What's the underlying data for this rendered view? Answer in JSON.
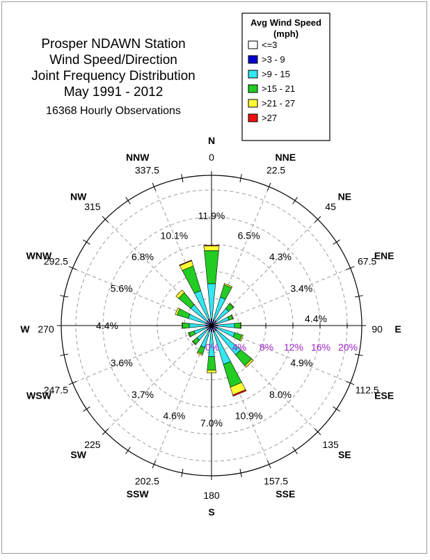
{
  "chart_data": {
    "type": "wind_rose",
    "title_lines": [
      "Prosper NDAWN Station",
      "Wind Speed/Direction",
      "Joint Frequency Distribution",
      "May 1991 - 2012"
    ],
    "subtitle": "16368 Hourly Observations",
    "legend": {
      "title_line1": "Avg Wind Speed",
      "title_line2": "(mph)",
      "placement": "top-right"
    },
    "speed_bins": [
      {
        "label": "<=3",
        "color": "#ffffff"
      },
      {
        "label": ">3 - 9",
        "color": "#0000cc"
      },
      {
        "label": ">9 - 15",
        "color": "#33e6f0"
      },
      {
        "label": ">15 - 21",
        "color": "#22cc22"
      },
      {
        "label": ">21 - 27",
        "color": "#ffff33"
      },
      {
        "label": ">27",
        "color": "#ee1111"
      }
    ],
    "ring_percent_labels": [
      "0%",
      "4%",
      "8%",
      "12%",
      "16%",
      "20%"
    ],
    "ring_percent_max": 20,
    "directions": [
      {
        "deg": 0,
        "deg_label": "0",
        "compass": "N",
        "total_label": "11.9%",
        "segments": [
          0.3,
          0.7,
          5.2,
          4.9,
          0.7,
          0.1
        ]
      },
      {
        "deg": 22.5,
        "deg_label": "22.5",
        "compass": "NNE",
        "total_label": "6.5%",
        "segments": [
          0.3,
          0.6,
          3.5,
          1.9,
          0.2,
          0.0
        ]
      },
      {
        "deg": 45,
        "deg_label": "45",
        "compass": "NE",
        "total_label": "4.3%",
        "segments": [
          0.3,
          0.6,
          2.4,
          0.9,
          0.1,
          0.0
        ]
      },
      {
        "deg": 67.5,
        "deg_label": "67.5",
        "compass": "ENE",
        "total_label": "3.4%",
        "segments": [
          0.3,
          0.5,
          1.9,
          0.6,
          0.1,
          0.0
        ]
      },
      {
        "deg": 90,
        "deg_label": "90",
        "compass": "E",
        "total_label": "4.4%",
        "segments": [
          0.3,
          0.6,
          2.5,
          0.9,
          0.1,
          0.0
        ]
      },
      {
        "deg": 112.5,
        "deg_label": "112.5",
        "compass": "ESE",
        "total_label": "4.9%",
        "segments": [
          0.3,
          0.6,
          2.7,
          1.1,
          0.2,
          0.0
        ]
      },
      {
        "deg": 135,
        "deg_label": "135",
        "compass": "SE",
        "total_label": "8.0%",
        "segments": [
          0.3,
          0.7,
          4.6,
          2.1,
          0.3,
          0.0
        ]
      },
      {
        "deg": 157.5,
        "deg_label": "157.5",
        "compass": "SSE",
        "total_label": "10.9%",
        "segments": [
          0.3,
          0.7,
          5.0,
          3.5,
          1.2,
          0.2
        ]
      },
      {
        "deg": 180,
        "deg_label": "180",
        "compass": "S",
        "total_label": "7.0%",
        "segments": [
          0.3,
          0.6,
          3.7,
          2.0,
          0.4,
          0.0
        ]
      },
      {
        "deg": 202.5,
        "deg_label": "202.5",
        "compass": "SSW",
        "total_label": "4.6%",
        "segments": [
          0.3,
          0.6,
          2.5,
          1.0,
          0.2,
          0.0
        ]
      },
      {
        "deg": 225,
        "deg_label": "225",
        "compass": "SW",
        "total_label": "3.7%",
        "segments": [
          0.3,
          0.5,
          2.0,
          0.8,
          0.1,
          0.0
        ]
      },
      {
        "deg": 247.5,
        "deg_label": "247.5",
        "compass": "WSW",
        "total_label": "3.6%",
        "segments": [
          0.3,
          0.5,
          1.9,
          0.8,
          0.1,
          0.0
        ]
      },
      {
        "deg": 270,
        "deg_label": "270",
        "compass": "W",
        "total_label": "4.4%",
        "segments": [
          0.3,
          0.6,
          2.4,
          1.0,
          0.1,
          0.0
        ]
      },
      {
        "deg": 292.5,
        "deg_label": "292.5",
        "compass": "WNW",
        "total_label": "5.6%",
        "segments": [
          0.3,
          0.6,
          2.7,
          1.7,
          0.3,
          0.0
        ]
      },
      {
        "deg": 315,
        "deg_label": "315",
        "compass": "NW",
        "total_label": "6.8%",
        "segments": [
          0.3,
          0.6,
          3.1,
          2.3,
          0.5,
          0.0
        ]
      },
      {
        "deg": 337.5,
        "deg_label": "337.5",
        "compass": "NNW",
        "total_label": "10.1%",
        "segments": [
          0.3,
          0.7,
          4.4,
          3.8,
          0.8,
          0.1
        ]
      }
    ]
  }
}
